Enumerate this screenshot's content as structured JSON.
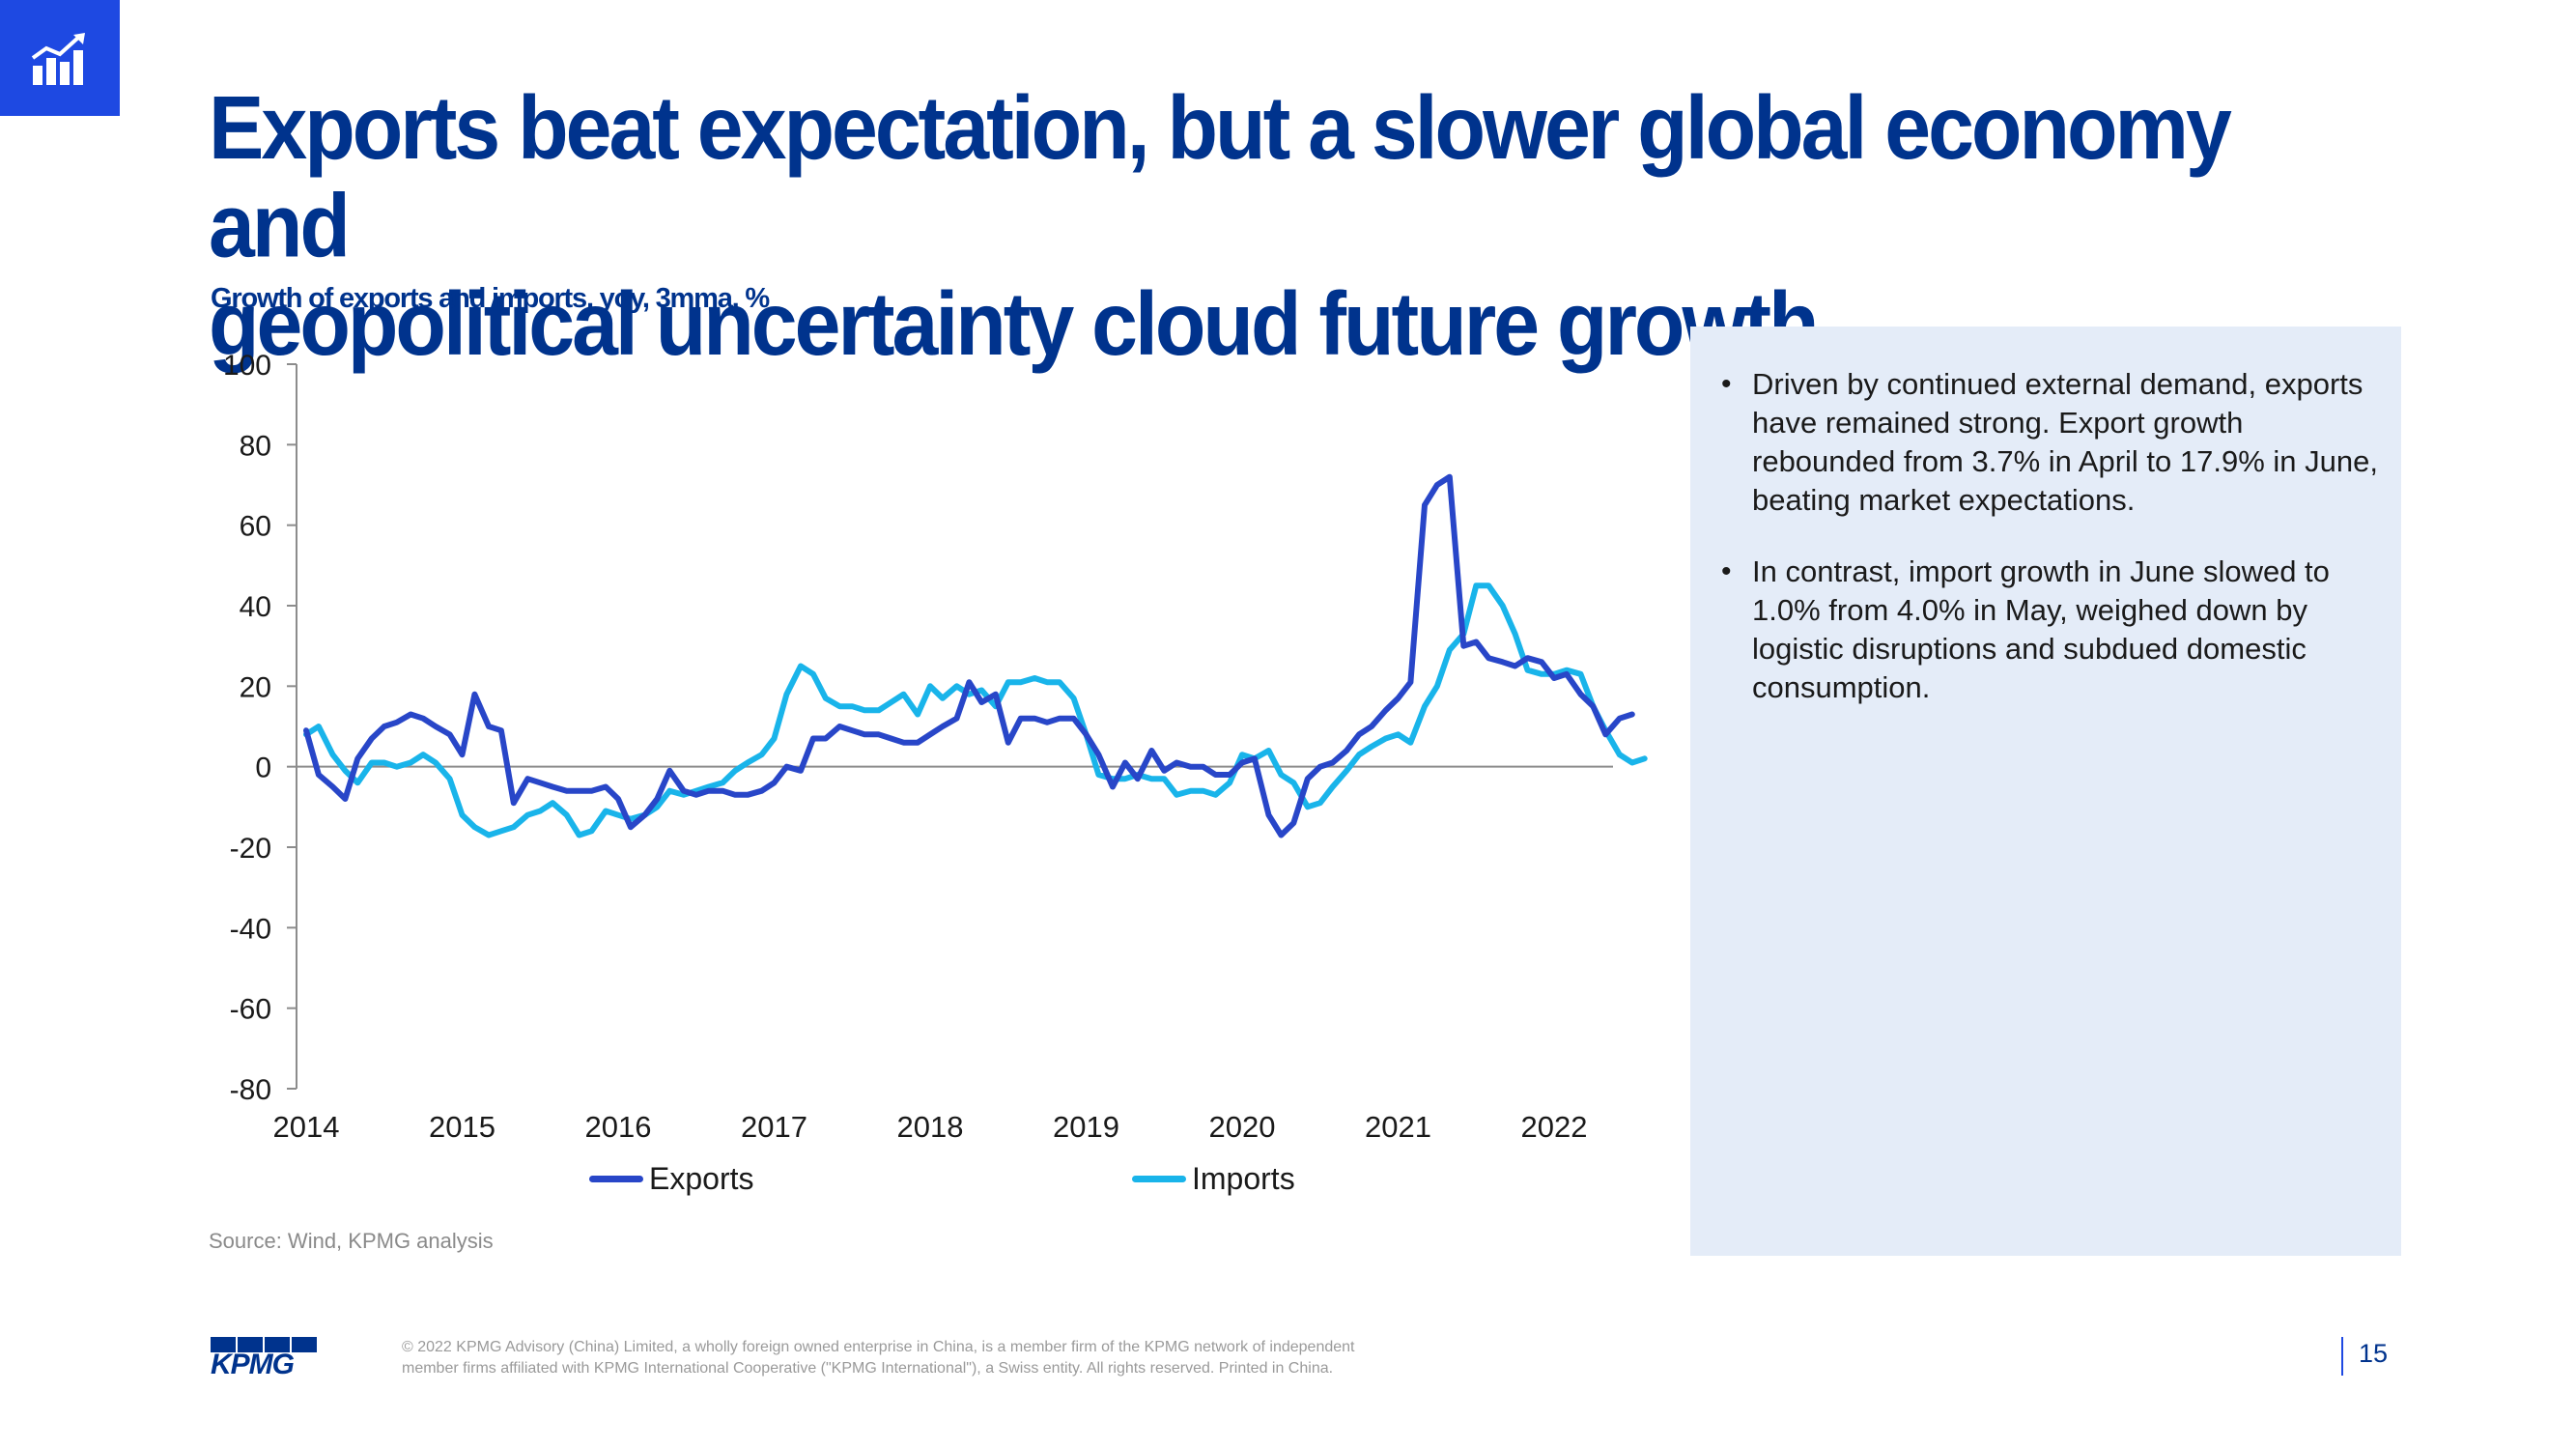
{
  "title_line1": "Exports beat expectation, but a slower global economy and",
  "title_line2": "geopolitical uncertainty cloud future growth",
  "subtitle": "Growth of exports and imports, yoy, 3mma, %",
  "source": "Source: Wind, KPMG analysis",
  "bullets": [
    "Driven by continued external demand, exports have remained strong. Export growth rebounded from 3.7% in April to 17.9% in June, beating market expectations.",
    "In contrast, import growth in June slowed to 1.0% from 4.0% in May, weighed down by logistic disruptions and subdued domestic consumption."
  ],
  "footer": {
    "logo_text": "KPMG",
    "copyright": "© 2022 KPMG Advisory (China) Limited, a wholly foreign owned enterprise in China, is a member firm of the KPMG network of independent member firms affiliated with KPMG International Cooperative (\"KPMG International\"), a Swiss entity. All rights reserved. Printed in China.",
    "page_number": "15"
  },
  "colors": {
    "exports": "#2846c8",
    "imports": "#19b4ea",
    "title": "#00338d",
    "accent": "#1e49e2",
    "panel": "#e4ecf8"
  },
  "icons": {
    "corner": "bar-chart-trend-icon"
  },
  "chart_data": {
    "type": "line",
    "title": "Growth of exports and imports, yoy, 3mma, %",
    "xlabel": "",
    "ylabel": "",
    "ylim": [
      -80,
      100
    ],
    "y_ticks": [
      100,
      80,
      60,
      40,
      20,
      0,
      -20,
      -40,
      -60,
      -80
    ],
    "x_ticks": [
      "2014",
      "2015",
      "2016",
      "2017",
      "2018",
      "2019",
      "2020",
      "2021",
      "2022"
    ],
    "x_range": [
      2014.0,
      2022.6
    ],
    "series": [
      {
        "name": "Exports",
        "points": [
          [
            2014.0,
            9
          ],
          [
            2014.08,
            -2
          ],
          [
            2014.17,
            -5
          ],
          [
            2014.25,
            -8
          ],
          [
            2014.33,
            2
          ],
          [
            2014.42,
            7
          ],
          [
            2014.5,
            10
          ],
          [
            2014.58,
            11
          ],
          [
            2014.67,
            13
          ],
          [
            2014.75,
            12
          ],
          [
            2014.83,
            10
          ],
          [
            2014.92,
            8
          ],
          [
            2015.0,
            3
          ],
          [
            2015.08,
            18
          ],
          [
            2015.17,
            10
          ],
          [
            2015.25,
            9
          ],
          [
            2015.33,
            -9
          ],
          [
            2015.42,
            -3
          ],
          [
            2015.5,
            -4
          ],
          [
            2015.58,
            -5
          ],
          [
            2015.67,
            -6
          ],
          [
            2015.75,
            -6
          ],
          [
            2015.83,
            -6
          ],
          [
            2015.92,
            -5
          ],
          [
            2016.0,
            -8
          ],
          [
            2016.08,
            -15
          ],
          [
            2016.17,
            -12
          ],
          [
            2016.25,
            -8
          ],
          [
            2016.33,
            -1
          ],
          [
            2016.42,
            -6
          ],
          [
            2016.5,
            -7
          ],
          [
            2016.58,
            -6
          ],
          [
            2016.67,
            -6
          ],
          [
            2016.75,
            -7
          ],
          [
            2016.83,
            -7
          ],
          [
            2016.92,
            -6
          ],
          [
            2017.0,
            -4
          ],
          [
            2017.08,
            0
          ],
          [
            2017.17,
            -1
          ],
          [
            2017.25,
            7
          ],
          [
            2017.33,
            7
          ],
          [
            2017.42,
            10
          ],
          [
            2017.5,
            9
          ],
          [
            2017.58,
            8
          ],
          [
            2017.67,
            8
          ],
          [
            2017.75,
            7
          ],
          [
            2017.83,
            6
          ],
          [
            2017.92,
            6
          ],
          [
            2018.0,
            8
          ],
          [
            2018.08,
            10
          ],
          [
            2018.17,
            12
          ],
          [
            2018.25,
            21
          ],
          [
            2018.33,
            16
          ],
          [
            2018.42,
            18
          ],
          [
            2018.5,
            6
          ],
          [
            2018.58,
            12
          ],
          [
            2018.67,
            12
          ],
          [
            2018.75,
            11
          ],
          [
            2018.83,
            12
          ],
          [
            2018.92,
            12
          ],
          [
            2019.0,
            8
          ],
          [
            2019.08,
            3
          ],
          [
            2019.17,
            -5
          ],
          [
            2019.25,
            1
          ],
          [
            2019.33,
            -3
          ],
          [
            2019.42,
            4
          ],
          [
            2019.5,
            -1
          ],
          [
            2019.58,
            1
          ],
          [
            2019.67,
            0
          ],
          [
            2019.75,
            0
          ],
          [
            2019.83,
            -2
          ],
          [
            2019.92,
            -2
          ],
          [
            2020.0,
            1
          ],
          [
            2020.08,
            2
          ],
          [
            2020.17,
            -12
          ],
          [
            2020.25,
            -17
          ],
          [
            2020.33,
            -14
          ],
          [
            2020.42,
            -3
          ],
          [
            2020.5,
            0
          ],
          [
            2020.58,
            1
          ],
          [
            2020.67,
            4
          ],
          [
            2020.75,
            8
          ],
          [
            2020.83,
            10
          ],
          [
            2020.92,
            14
          ],
          [
            2021.0,
            17
          ],
          [
            2021.08,
            21
          ],
          [
            2021.17,
            65
          ],
          [
            2021.25,
            70
          ],
          [
            2021.33,
            72
          ],
          [
            2021.42,
            30
          ],
          [
            2021.5,
            31
          ],
          [
            2021.58,
            27
          ],
          [
            2021.67,
            26
          ],
          [
            2021.75,
            25
          ],
          [
            2021.83,
            27
          ],
          [
            2021.92,
            26
          ],
          [
            2022.0,
            22
          ],
          [
            2022.08,
            23
          ],
          [
            2022.17,
            18
          ],
          [
            2022.25,
            15
          ],
          [
            2022.33,
            8
          ],
          [
            2022.42,
            12
          ],
          [
            2022.5,
            13
          ]
        ]
      },
      {
        "name": "Imports",
        "points": [
          [
            2014.0,
            8
          ],
          [
            2014.08,
            10
          ],
          [
            2014.17,
            3
          ],
          [
            2014.25,
            -1
          ],
          [
            2014.33,
            -4
          ],
          [
            2014.42,
            1
          ],
          [
            2014.5,
            1
          ],
          [
            2014.58,
            0
          ],
          [
            2014.67,
            1
          ],
          [
            2014.75,
            3
          ],
          [
            2014.83,
            1
          ],
          [
            2014.92,
            -3
          ],
          [
            2015.0,
            -12
          ],
          [
            2015.08,
            -15
          ],
          [
            2015.17,
            -17
          ],
          [
            2015.25,
            -16
          ],
          [
            2015.33,
            -15
          ],
          [
            2015.42,
            -12
          ],
          [
            2015.5,
            -11
          ],
          [
            2015.58,
            -9
          ],
          [
            2015.67,
            -12
          ],
          [
            2015.75,
            -17
          ],
          [
            2015.83,
            -16
          ],
          [
            2015.92,
            -11
          ],
          [
            2016.0,
            -12
          ],
          [
            2016.08,
            -13
          ],
          [
            2016.17,
            -12
          ],
          [
            2016.25,
            -10
          ],
          [
            2016.33,
            -6
          ],
          [
            2016.42,
            -7
          ],
          [
            2016.5,
            -6
          ],
          [
            2016.58,
            -5
          ],
          [
            2016.67,
            -4
          ],
          [
            2016.75,
            -1
          ],
          [
            2016.83,
            1
          ],
          [
            2016.92,
            3
          ],
          [
            2017.0,
            7
          ],
          [
            2017.08,
            18
          ],
          [
            2017.17,
            25
          ],
          [
            2017.25,
            23
          ],
          [
            2017.33,
            17
          ],
          [
            2017.42,
            15
          ],
          [
            2017.5,
            15
          ],
          [
            2017.58,
            14
          ],
          [
            2017.67,
            14
          ],
          [
            2017.75,
            16
          ],
          [
            2017.83,
            18
          ],
          [
            2017.92,
            13
          ],
          [
            2018.0,
            20
          ],
          [
            2018.08,
            17
          ],
          [
            2018.17,
            20
          ],
          [
            2018.25,
            18
          ],
          [
            2018.33,
            19
          ],
          [
            2018.42,
            15
          ],
          [
            2018.5,
            21
          ],
          [
            2018.58,
            21
          ],
          [
            2018.67,
            22
          ],
          [
            2018.75,
            21
          ],
          [
            2018.83,
            21
          ],
          [
            2018.92,
            17
          ],
          [
            2019.0,
            8
          ],
          [
            2019.08,
            -2
          ],
          [
            2019.17,
            -3
          ],
          [
            2019.25,
            -3
          ],
          [
            2019.33,
            -2
          ],
          [
            2019.42,
            -3
          ],
          [
            2019.5,
            -3
          ],
          [
            2019.58,
            -7
          ],
          [
            2019.67,
            -6
          ],
          [
            2019.75,
            -6
          ],
          [
            2019.83,
            -7
          ],
          [
            2019.92,
            -4
          ],
          [
            2020.0,
            3
          ],
          [
            2020.08,
            2
          ],
          [
            2020.17,
            4
          ],
          [
            2020.25,
            -2
          ],
          [
            2020.33,
            -4
          ],
          [
            2020.42,
            -10
          ],
          [
            2020.5,
            -9
          ],
          [
            2020.58,
            -5
          ],
          [
            2020.67,
            -1
          ],
          [
            2020.75,
            3
          ],
          [
            2020.83,
            5
          ],
          [
            2020.92,
            7
          ],
          [
            2021.0,
            8
          ],
          [
            2021.08,
            6
          ],
          [
            2021.17,
            15
          ],
          [
            2021.25,
            20
          ],
          [
            2021.33,
            29
          ],
          [
            2021.42,
            33
          ],
          [
            2021.5,
            45
          ],
          [
            2021.58,
            45
          ],
          [
            2021.67,
            40
          ],
          [
            2021.75,
            33
          ],
          [
            2021.83,
            24
          ],
          [
            2021.92,
            23
          ],
          [
            2022.0,
            23
          ],
          [
            2022.08,
            24
          ],
          [
            2022.17,
            23
          ],
          [
            2022.25,
            15
          ],
          [
            2022.33,
            9
          ],
          [
            2022.42,
            3
          ],
          [
            2022.5,
            1
          ],
          [
            2022.58,
            2
          ]
        ]
      }
    ],
    "legend": "bottom"
  }
}
